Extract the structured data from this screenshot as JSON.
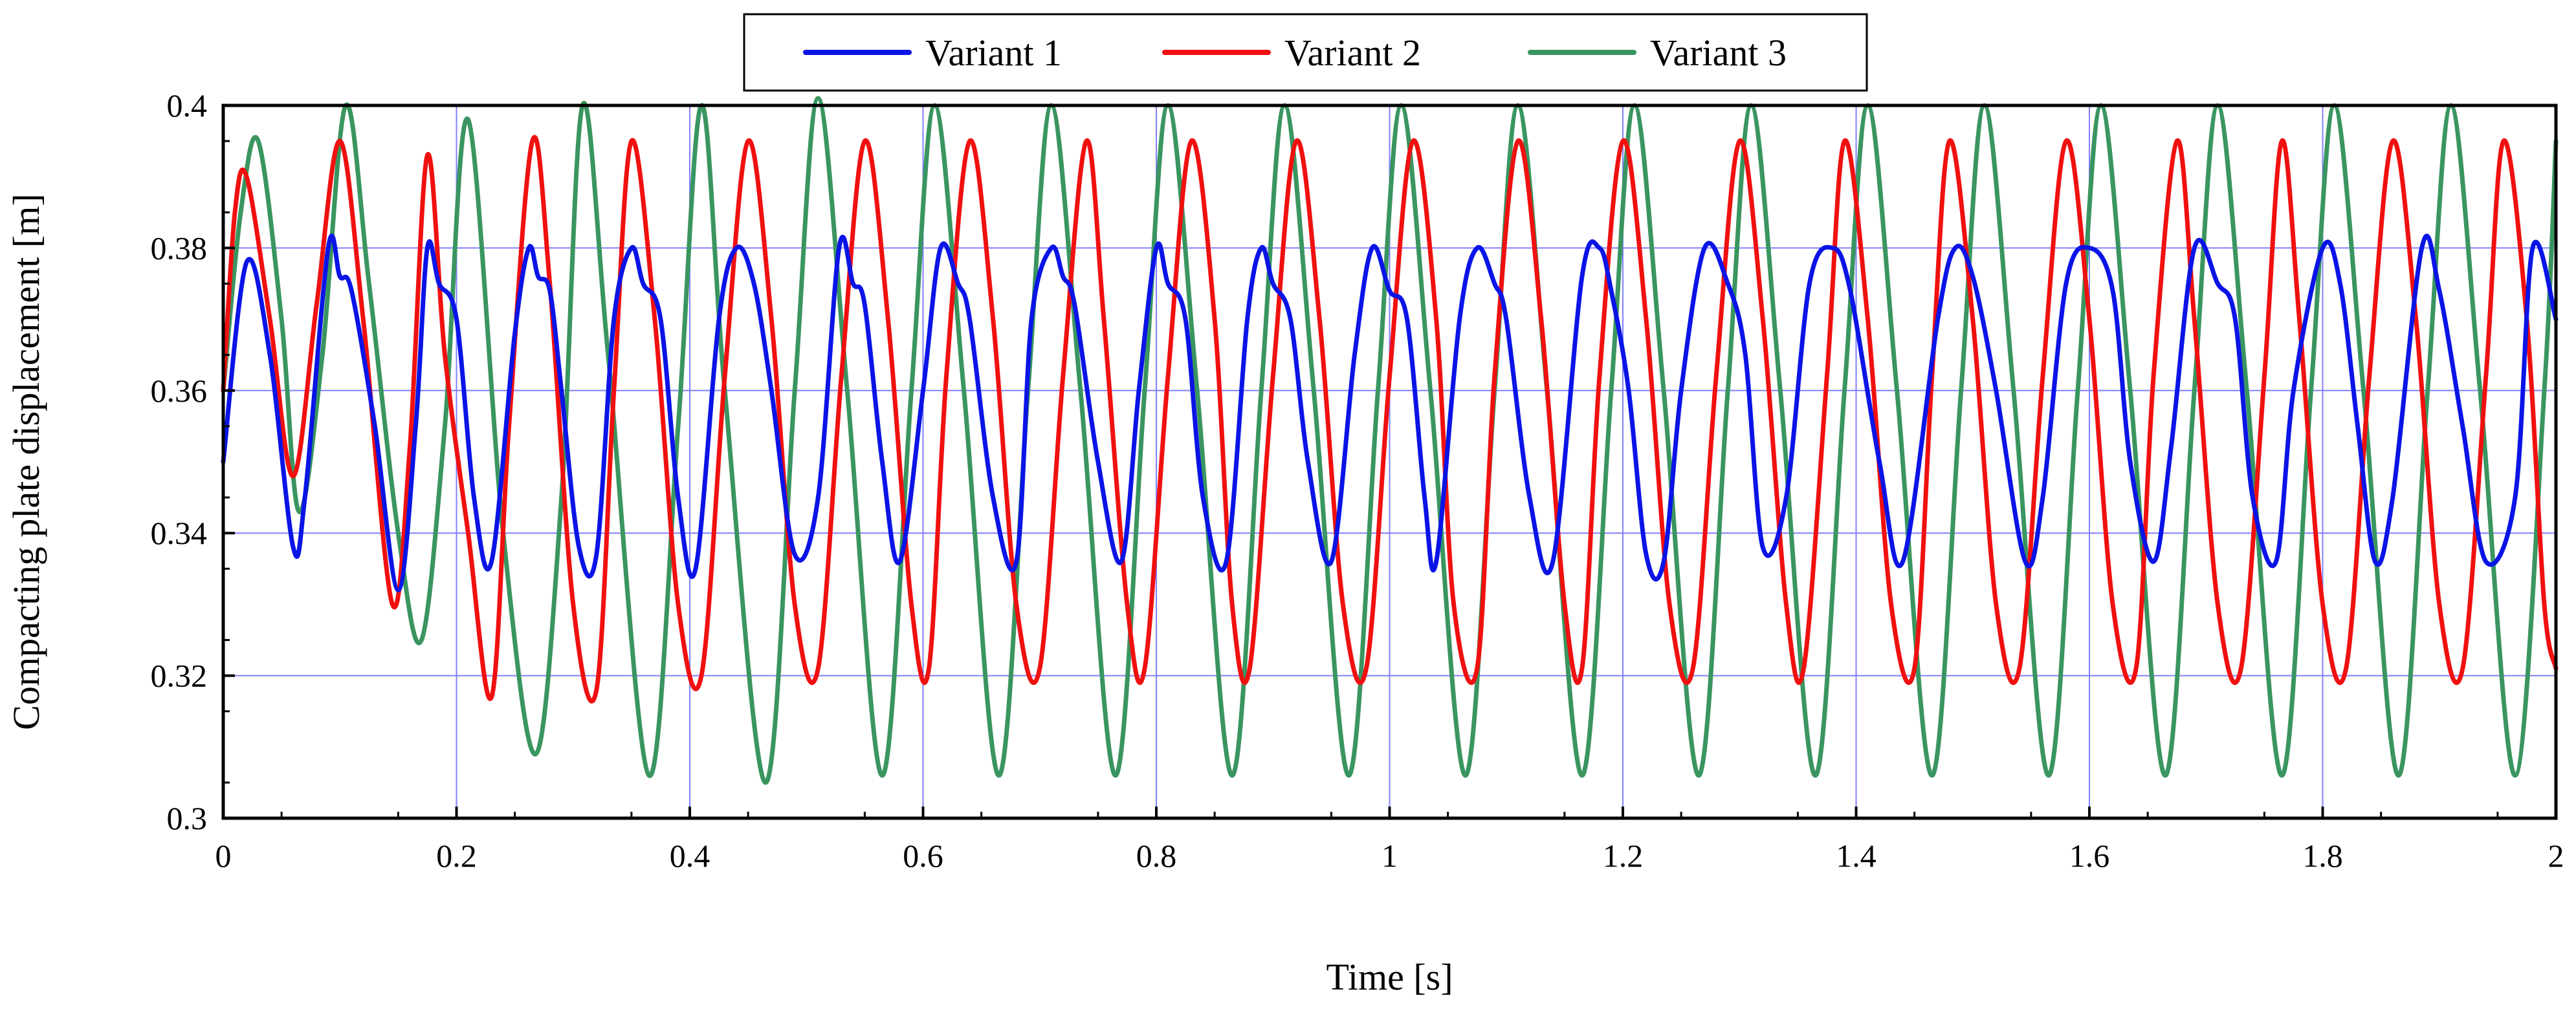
{
  "chart_data": {
    "type": "line",
    "title": "",
    "xlabel": "Time [s]",
    "ylabel": "Compacting plate displacement [m]",
    "xlim": [
      0,
      2
    ],
    "ylim": [
      0.3,
      0.4
    ],
    "xticks": [
      "0",
      "0.2",
      "0.4",
      "0.6",
      "0.8",
      "1",
      "1.2",
      "1.4",
      "1.6",
      "1.8",
      "2"
    ],
    "yticks": [
      "0.3",
      "0.32",
      "0.34",
      "0.36",
      "0.38",
      "0.4"
    ],
    "grid": true,
    "legend_position": "top-center",
    "colors": {
      "Variant 1": "#0a14e6",
      "Variant 2": "#f01010",
      "Variant 3": "#3a9560",
      "grid": "#8080ff"
    },
    "series": [
      {
        "name": "Variant 1",
        "color": "#0a14e6",
        "x": [
          0,
          0.02,
          0.04,
          0.06,
          0.07,
          0.09,
          0.1,
          0.11,
          0.13,
          0.15,
          0.165,
          0.175,
          0.185,
          0.2,
          0.215,
          0.23,
          0.25,
          0.262,
          0.27,
          0.28,
          0.29,
          0.305,
          0.32,
          0.335,
          0.35,
          0.36,
          0.375,
          0.39,
          0.405,
          0.425,
          0.44,
          0.455,
          0.47,
          0.49,
          0.51,
          0.528,
          0.54,
          0.55,
          0.565,
          0.58,
          0.6,
          0.615,
          0.63,
          0.64,
          0.66,
          0.68,
          0.693,
          0.71,
          0.72,
          0.73,
          0.75,
          0.77,
          0.785,
          0.8,
          0.81,
          0.825,
          0.84,
          0.86,
          0.878,
          0.89,
          0.9,
          0.915,
          0.93,
          0.95,
          0.97,
          0.985,
          1.0,
          1.015,
          1.03,
          1.04,
          1.06,
          1.075,
          1.09,
          1.1,
          1.12,
          1.14,
          1.165,
          1.18,
          1.19,
          1.205,
          1.22,
          1.235,
          1.25,
          1.27,
          1.29,
          1.305,
          1.32,
          1.34,
          1.36,
          1.38,
          1.395,
          1.42,
          1.44,
          1.47,
          1.485,
          1.5,
          1.52,
          1.545,
          1.56,
          1.58,
          1.6,
          1.62,
          1.635,
          1.655,
          1.67,
          1.69,
          1.71,
          1.725,
          1.74,
          1.76,
          1.775,
          1.8,
          1.815,
          1.83,
          1.845,
          1.86,
          1.885,
          1.9,
          1.92,
          1.94,
          1.965,
          1.98,
          2.0
        ],
        "y": [
          0.35,
          0.378,
          0.365,
          0.338,
          0.345,
          0.38,
          0.376,
          0.374,
          0.355,
          0.332,
          0.355,
          0.38,
          0.375,
          0.37,
          0.345,
          0.336,
          0.368,
          0.38,
          0.376,
          0.374,
          0.36,
          0.338,
          0.337,
          0.37,
          0.38,
          0.375,
          0.37,
          0.345,
          0.335,
          0.37,
          0.38,
          0.375,
          0.36,
          0.337,
          0.345,
          0.38,
          0.375,
          0.372,
          0.35,
          0.336,
          0.36,
          0.38,
          0.375,
          0.37,
          0.345,
          0.336,
          0.37,
          0.38,
          0.376,
          0.372,
          0.35,
          0.336,
          0.36,
          0.38,
          0.375,
          0.37,
          0.345,
          0.336,
          0.37,
          0.38,
          0.375,
          0.37,
          0.35,
          0.336,
          0.365,
          0.38,
          0.374,
          0.37,
          0.345,
          0.336,
          0.37,
          0.38,
          0.375,
          0.37,
          0.345,
          0.336,
          0.376,
          0.38,
          0.374,
          0.36,
          0.337,
          0.336,
          0.36,
          0.38,
          0.375,
          0.365,
          0.338,
          0.345,
          0.375,
          0.38,
          0.374,
          0.35,
          0.336,
          0.37,
          0.38,
          0.376,
          0.36,
          0.336,
          0.345,
          0.375,
          0.38,
          0.374,
          0.35,
          0.336,
          0.352,
          0.38,
          0.375,
          0.37,
          0.345,
          0.336,
          0.36,
          0.38,
          0.375,
          0.355,
          0.336,
          0.345,
          0.38,
          0.374,
          0.355,
          0.336,
          0.345,
          0.38,
          0.37
        ]
      },
      {
        "name": "Variant 2",
        "color": "#f01010",
        "x": [
          0,
          0.01,
          0.02,
          0.04,
          0.06,
          0.08,
          0.1,
          0.12,
          0.145,
          0.16,
          0.175,
          0.19,
          0.21,
          0.23,
          0.245,
          0.265,
          0.28,
          0.3,
          0.32,
          0.335,
          0.35,
          0.37,
          0.39,
          0.41,
          0.43,
          0.45,
          0.47,
          0.49,
          0.51,
          0.53,
          0.55,
          0.57,
          0.59,
          0.605,
          0.62,
          0.64,
          0.66,
          0.68,
          0.7,
          0.72,
          0.74,
          0.755,
          0.775,
          0.79,
          0.81,
          0.83,
          0.85,
          0.865,
          0.88,
          0.9,
          0.92,
          0.94,
          0.96,
          0.98,
          1.0,
          1.02,
          1.04,
          1.055,
          1.075,
          1.09,
          1.11,
          1.13,
          1.15,
          1.165,
          1.18,
          1.2,
          1.22,
          1.24,
          1.26,
          1.28,
          1.3,
          1.32,
          1.34,
          1.355,
          1.375,
          1.39,
          1.41,
          1.43,
          1.45,
          1.465,
          1.48,
          1.5,
          1.52,
          1.54,
          1.56,
          1.58,
          1.6,
          1.62,
          1.64,
          1.655,
          1.675,
          1.69,
          1.71,
          1.73,
          1.75,
          1.765,
          1.78,
          1.8,
          1.82,
          1.84,
          1.86,
          1.88,
          1.9,
          1.92,
          1.94,
          1.955,
          1.975,
          1.99,
          2.0
        ],
        "y": [
          0.36,
          0.385,
          0.39,
          0.37,
          0.348,
          0.372,
          0.395,
          0.37,
          0.33,
          0.352,
          0.393,
          0.365,
          0.34,
          0.317,
          0.355,
          0.395,
          0.375,
          0.33,
          0.318,
          0.36,
          0.395,
          0.37,
          0.33,
          0.32,
          0.362,
          0.395,
          0.37,
          0.33,
          0.321,
          0.362,
          0.395,
          0.37,
          0.33,
          0.321,
          0.362,
          0.395,
          0.37,
          0.33,
          0.321,
          0.362,
          0.395,
          0.37,
          0.33,
          0.321,
          0.362,
          0.395,
          0.37,
          0.33,
          0.321,
          0.362,
          0.395,
          0.37,
          0.33,
          0.321,
          0.362,
          0.395,
          0.37,
          0.33,
          0.321,
          0.362,
          0.395,
          0.37,
          0.33,
          0.321,
          0.362,
          0.395,
          0.37,
          0.33,
          0.321,
          0.362,
          0.395,
          0.37,
          0.33,
          0.321,
          0.362,
          0.395,
          0.37,
          0.33,
          0.321,
          0.362,
          0.395,
          0.37,
          0.33,
          0.321,
          0.362,
          0.395,
          0.37,
          0.33,
          0.321,
          0.362,
          0.395,
          0.37,
          0.33,
          0.321,
          0.362,
          0.395,
          0.37,
          0.33,
          0.321,
          0.362,
          0.395,
          0.37,
          0.33,
          0.321,
          0.362,
          0.395,
          0.37,
          0.33,
          0.321
        ]
      },
      {
        "name": "Variant 3",
        "color": "#3a9560",
        "x": [
          0,
          0.015,
          0.03,
          0.05,
          0.065,
          0.085,
          0.105,
          0.125,
          0.15,
          0.17,
          0.19,
          0.21,
          0.24,
          0.268,
          0.29,
          0.308,
          0.33,
          0.365,
          0.39,
          0.41,
          0.43,
          0.465,
          0.49,
          0.51,
          0.535,
          0.565,
          0.59,
          0.61,
          0.635,
          0.665,
          0.69,
          0.71,
          0.735,
          0.765,
          0.79,
          0.81,
          0.835,
          0.865,
          0.89,
          0.91,
          0.935,
          0.965,
          0.99,
          1.01,
          1.035,
          1.065,
          1.09,
          1.11,
          1.135,
          1.165,
          1.19,
          1.21,
          1.235,
          1.265,
          1.29,
          1.31,
          1.335,
          1.365,
          1.39,
          1.41,
          1.435,
          1.465,
          1.49,
          1.51,
          1.535,
          1.565,
          1.59,
          1.61,
          1.635,
          1.665,
          1.69,
          1.71,
          1.735,
          1.765,
          1.79,
          1.81,
          1.835,
          1.865,
          1.89,
          1.91,
          1.935,
          1.965,
          1.99,
          2.0
        ],
        "y": [
          0.36,
          0.385,
          0.395,
          0.37,
          0.343,
          0.365,
          0.4,
          0.375,
          0.34,
          0.325,
          0.355,
          0.398,
          0.34,
          0.309,
          0.345,
          0.4,
          0.365,
          0.306,
          0.355,
          0.4,
          0.36,
          0.305,
          0.36,
          0.401,
          0.36,
          0.306,
          0.36,
          0.4,
          0.36,
          0.306,
          0.36,
          0.4,
          0.36,
          0.306,
          0.36,
          0.4,
          0.36,
          0.306,
          0.36,
          0.4,
          0.36,
          0.306,
          0.36,
          0.4,
          0.36,
          0.306,
          0.36,
          0.4,
          0.36,
          0.306,
          0.36,
          0.4,
          0.36,
          0.306,
          0.36,
          0.4,
          0.36,
          0.306,
          0.36,
          0.4,
          0.36,
          0.306,
          0.36,
          0.4,
          0.36,
          0.306,
          0.36,
          0.4,
          0.36,
          0.306,
          0.36,
          0.4,
          0.36,
          0.306,
          0.36,
          0.4,
          0.36,
          0.306,
          0.36,
          0.4,
          0.36,
          0.306,
          0.36,
          0.395
        ]
      }
    ]
  }
}
